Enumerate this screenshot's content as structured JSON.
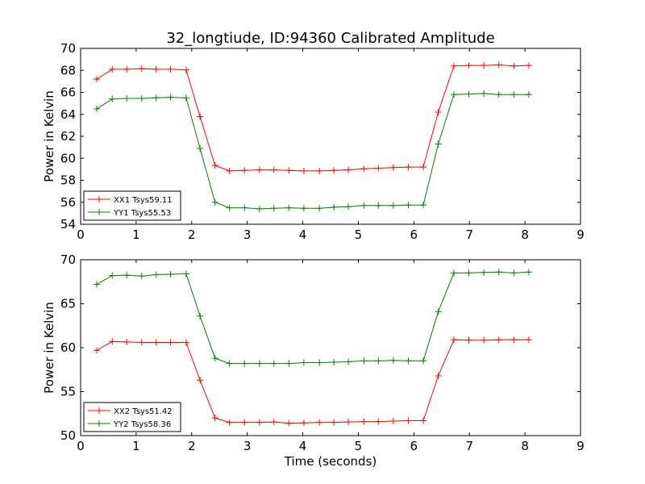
{
  "chart_data": [
    {
      "type": "line",
      "title": "32_longtiude, ID:94360 Calibrated Amplitude",
      "xlabel": "",
      "ylabel": "Power in Kelvin",
      "xlim": [
        0,
        9
      ],
      "ylim": [
        54,
        70
      ],
      "xticks": [
        "0",
        "1",
        "2",
        "3",
        "4",
        "5",
        "6",
        "7",
        "8",
        "9"
      ],
      "yticks": [
        "54",
        "56",
        "58",
        "60",
        "62",
        "64",
        "66",
        "68",
        "70"
      ],
      "legend_position": "bottom-left",
      "x": [
        0.29,
        0.57,
        0.83,
        1.1,
        1.36,
        1.62,
        1.9,
        2.15,
        2.42,
        2.68,
        2.95,
        3.22,
        3.48,
        3.75,
        4.02,
        4.3,
        4.56,
        4.82,
        5.1,
        5.36,
        5.63,
        5.9,
        6.17,
        6.44,
        6.72,
        6.99,
        7.26,
        7.53,
        7.8,
        8.07
      ],
      "series": [
        {
          "name": "XX1 Tsys59.11",
          "color": "#ff0000",
          "values": [
            67.2,
            68.1,
            68.1,
            68.15,
            68.1,
            68.1,
            68.05,
            63.8,
            59.35,
            58.85,
            58.9,
            58.95,
            58.95,
            58.9,
            58.85,
            58.85,
            58.9,
            58.95,
            59.05,
            59.1,
            59.15,
            59.2,
            59.2,
            64.2,
            68.4,
            68.45,
            68.45,
            68.5,
            68.4,
            68.45
          ]
        },
        {
          "name": "YY1 Tsys55.53",
          "color": "#008000",
          "values": [
            64.5,
            65.4,
            65.45,
            65.45,
            65.5,
            65.55,
            65.5,
            60.9,
            56.0,
            55.5,
            55.5,
            55.4,
            55.45,
            55.5,
            55.45,
            55.45,
            55.55,
            55.6,
            55.7,
            55.7,
            55.7,
            55.75,
            55.75,
            61.3,
            65.8,
            65.85,
            65.9,
            65.8,
            65.8,
            65.8
          ]
        }
      ]
    },
    {
      "type": "line",
      "title": "",
      "xlabel": "Time (seconds)",
      "ylabel": "Power in Kelvin",
      "xlim": [
        0,
        9
      ],
      "ylim": [
        50,
        70
      ],
      "xticks": [
        "0",
        "1",
        "2",
        "3",
        "4",
        "5",
        "6",
        "7",
        "8",
        "9"
      ],
      "yticks": [
        "50",
        "55",
        "60",
        "65",
        "70"
      ],
      "legend_position": "bottom-left",
      "x": [
        0.29,
        0.57,
        0.83,
        1.1,
        1.36,
        1.62,
        1.9,
        2.15,
        2.42,
        2.68,
        2.95,
        3.22,
        3.48,
        3.75,
        4.02,
        4.3,
        4.56,
        4.82,
        5.1,
        5.36,
        5.63,
        5.9,
        6.17,
        6.44,
        6.72,
        6.99,
        7.26,
        7.53,
        7.8,
        8.07
      ],
      "series": [
        {
          "name": "XX2 Tsys51.42",
          "color": "#ff0000",
          "values": [
            59.7,
            60.7,
            60.65,
            60.6,
            60.6,
            60.6,
            60.6,
            56.3,
            52.0,
            51.5,
            51.5,
            51.5,
            51.55,
            51.4,
            51.45,
            51.5,
            51.5,
            51.55,
            51.6,
            51.6,
            51.65,
            51.7,
            51.7,
            56.8,
            60.9,
            60.85,
            60.85,
            60.9,
            60.9,
            60.9
          ]
        },
        {
          "name": "YY2 Tsys58.36",
          "color": "#008000",
          "values": [
            67.2,
            68.2,
            68.25,
            68.15,
            68.3,
            68.35,
            68.4,
            63.6,
            58.8,
            58.2,
            58.2,
            58.2,
            58.2,
            58.2,
            58.3,
            58.3,
            58.35,
            58.4,
            58.5,
            58.5,
            58.55,
            58.5,
            58.5,
            64.1,
            68.5,
            68.5,
            68.55,
            68.6,
            68.5,
            68.6
          ]
        }
      ]
    }
  ]
}
